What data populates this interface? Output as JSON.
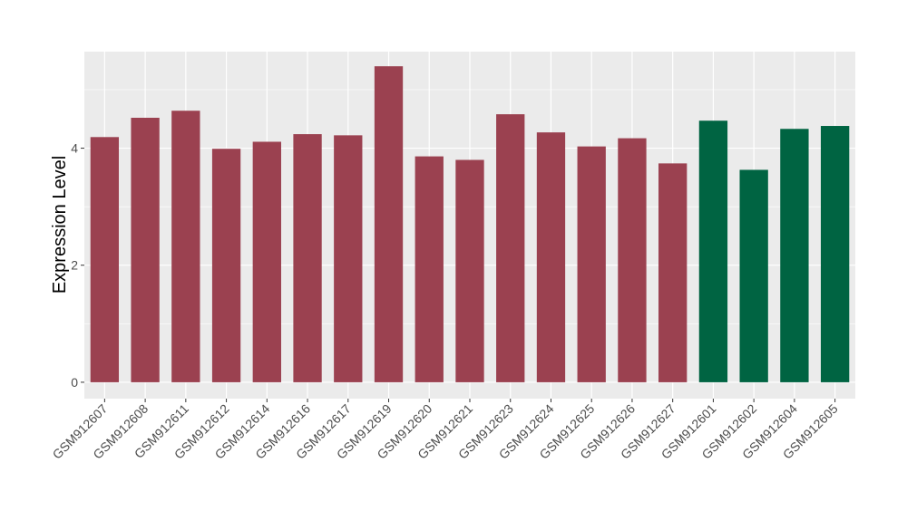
{
  "chart_data": {
    "type": "bar",
    "title": "",
    "xlabel": "",
    "ylabel": "Expression Level",
    "ylim": [
      -0.28,
      5.65
    ],
    "yticks": [
      0,
      2,
      4
    ],
    "grid": true,
    "legend": "none",
    "categories": [
      "GSM912607",
      "GSM912608",
      "GSM912611",
      "GSM912612",
      "GSM912614",
      "GSM912616",
      "GSM912617",
      "GSM912619",
      "GSM912620",
      "GSM912621",
      "GSM912623",
      "GSM912624",
      "GSM912625",
      "GSM912626",
      "GSM912627",
      "GSM912601",
      "GSM912602",
      "GSM912604",
      "GSM912605"
    ],
    "values": [
      4.19,
      4.52,
      4.64,
      3.99,
      4.11,
      4.24,
      4.22,
      5.4,
      3.86,
      3.8,
      4.58,
      4.27,
      4.03,
      4.17,
      3.74,
      4.47,
      3.63,
      4.33,
      4.38
    ],
    "groups": [
      "a",
      "a",
      "a",
      "a",
      "a",
      "a",
      "a",
      "a",
      "a",
      "a",
      "a",
      "a",
      "a",
      "a",
      "a",
      "b",
      "b",
      "b",
      "b"
    ],
    "colors": {
      "a": "#9b4150",
      "b": "#006442"
    },
    "background": "#ebebeb",
    "gridline_color": "#ffffff"
  }
}
